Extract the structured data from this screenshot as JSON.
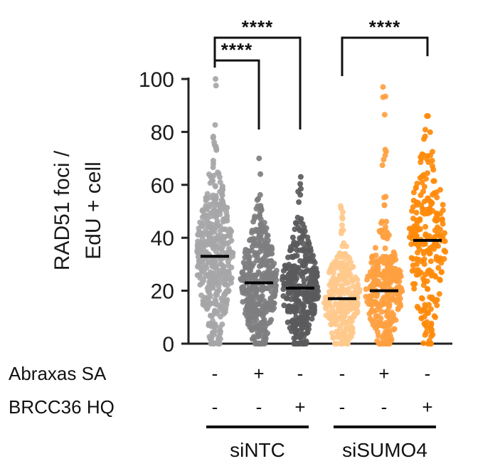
{
  "chart_data": {
    "type": "scatter",
    "ylabel": [
      "RAD51 foci /",
      "EdU + cell"
    ],
    "ylim": [
      0,
      100
    ],
    "yticks": [
      "0",
      "20",
      "40",
      "60",
      "80",
      "100"
    ],
    "series": [
      {
        "median": 33,
        "min": 0,
        "max": 100,
        "color": "#a6a6a8",
        "count": 420
      },
      {
        "median": 23,
        "min": 0,
        "max": 70,
        "color": "#7e7e80",
        "count": 360
      },
      {
        "median": 21,
        "min": 0,
        "max": 63,
        "color": "#5a5a5c",
        "count": 340
      },
      {
        "median": 17,
        "min": 0,
        "max": 52,
        "color": "#ffc98c",
        "count": 260
      },
      {
        "median": 20,
        "min": 0,
        "max": 97,
        "color": "#ffa040",
        "count": 300
      },
      {
        "median": 39,
        "min": 0,
        "max": 86,
        "color": "#ff8a0a",
        "count": 240
      }
    ],
    "conditions": [
      {
        "label": "Abraxas SA",
        "signs": [
          "-",
          "+",
          "-",
          "-",
          "+",
          "-"
        ]
      },
      {
        "label": "BRCC36 HQ",
        "signs": [
          "-",
          "-",
          "+",
          "-",
          "-",
          "+"
        ]
      }
    ],
    "groups": [
      {
        "label": "siNTC",
        "from": 0,
        "to": 2
      },
      {
        "label": "siSUMO4",
        "from": 3,
        "to": 5
      }
    ],
    "significance": [
      {
        "from": 0,
        "to": 1,
        "label": "****"
      },
      {
        "from": 0,
        "to": 2,
        "label": "****"
      },
      {
        "from": 3,
        "to": 5,
        "label": "****"
      }
    ]
  }
}
